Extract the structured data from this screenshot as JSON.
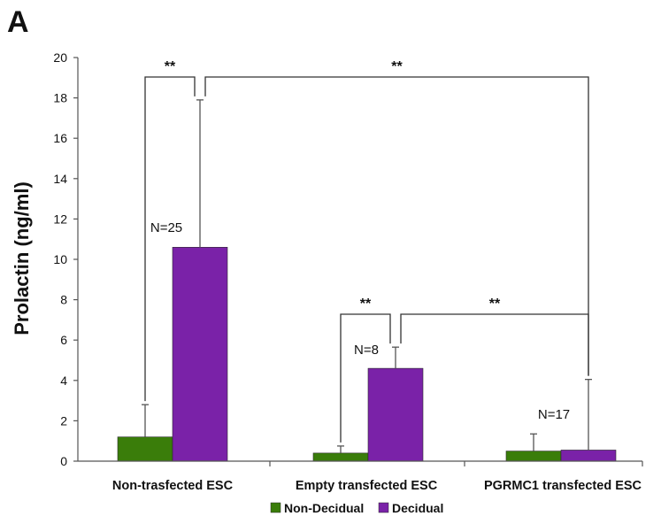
{
  "panel_label": "A",
  "chart_data": {
    "type": "bar",
    "title": "",
    "xlabel": "",
    "ylabel": "Prolactin (ng/ml)",
    "ylim": [
      0,
      20
    ],
    "yticks": [
      0,
      2,
      4,
      6,
      8,
      10,
      12,
      14,
      16,
      18,
      20
    ],
    "grid": false,
    "legend_position": "bottom-center",
    "categories": [
      "Non-trasfected ESC",
      "Empty transfected ESC",
      "PGRMC1 transfected ESC"
    ],
    "series": [
      {
        "name": "Non-Decidual",
        "color": "#3a7d0a",
        "values": [
          1.2,
          0.4,
          0.5
        ],
        "errors": [
          1.6,
          0.35,
          0.85
        ]
      },
      {
        "name": "Decidual",
        "color": "#7a22a8",
        "values": [
          10.6,
          4.6,
          0.55
        ],
        "errors": [
          7.3,
          1.05,
          3.5
        ]
      }
    ],
    "annotations": [
      {
        "text": "N=25",
        "category": 0
      },
      {
        "text": "N=8",
        "category": 1
      },
      {
        "text": "N=17",
        "category": 2
      }
    ],
    "significance": [
      {
        "label": "**",
        "from": [
          0,
          "Non-Decidual"
        ],
        "to": [
          0,
          "Decidual"
        ]
      },
      {
        "label": "**",
        "from": [
          0,
          "Decidual"
        ],
        "to": [
          2,
          "Decidual"
        ]
      },
      {
        "label": "**",
        "from": [
          1,
          "Non-Decidual"
        ],
        "to": [
          1,
          "Decidual"
        ]
      },
      {
        "label": "**",
        "from": [
          1,
          "Decidual"
        ],
        "to": [
          2,
          "Decidual"
        ]
      }
    ]
  }
}
